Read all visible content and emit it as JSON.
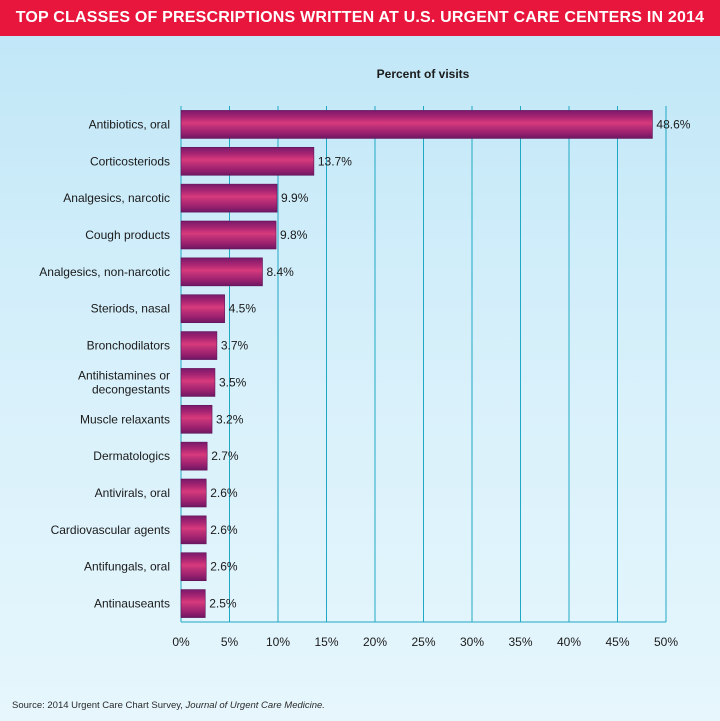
{
  "header": {
    "title": "TOP CLASSES OF PRESCRIPTIONS WRITTEN AT U.S. URGENT CARE CENTERS IN 2014"
  },
  "footer": {
    "source_prefix": "Source: 2014 Urgent Care Chart Survey, ",
    "source_publication": "Journal of Urgent Care Medicine."
  },
  "colors": {
    "title_bar": "#e8163c",
    "bar_outer": "#8a1f6e",
    "bar_highlight": "#d83a7c",
    "grid": "#1fa8c4"
  },
  "chart_data": {
    "type": "bar",
    "orientation": "horizontal",
    "title": "Percent of visits",
    "categories": [
      [
        "Antibiotics, oral"
      ],
      [
        "Corticosteriods"
      ],
      [
        "Analgesics, narcotic"
      ],
      [
        "Cough products"
      ],
      [
        "Analgesics, non-narcotic"
      ],
      [
        "Steriods, nasal"
      ],
      [
        "Bronchodilators"
      ],
      [
        "Antihistamines or",
        "decongestants"
      ],
      [
        "Muscle relaxants"
      ],
      [
        "Dermatologics"
      ],
      [
        "Antivirals, oral"
      ],
      [
        "Cardiovascular agents"
      ],
      [
        "Antifungals, oral"
      ],
      [
        "Antinauseants"
      ]
    ],
    "values": [
      48.6,
      13.7,
      9.9,
      9.8,
      8.4,
      4.5,
      3.7,
      3.5,
      3.2,
      2.7,
      2.6,
      2.6,
      2.6,
      2.5
    ],
    "value_labels": [
      "48.6%",
      "13.7%",
      "9.9%",
      "9.8%",
      "8.4%",
      "4.5%",
      "3.7%",
      "3.5%",
      "3.2%",
      "2.7%",
      "2.6%",
      "2.6%",
      "2.6%",
      "2.5%"
    ],
    "xlim": [
      0,
      50
    ],
    "xticks": [
      0,
      5,
      10,
      15,
      20,
      25,
      30,
      35,
      40,
      45,
      50
    ],
    "xtick_labels": [
      "0%",
      "5%",
      "10%",
      "15%",
      "20%",
      "25%",
      "30%",
      "35%",
      "40%",
      "45%",
      "50%"
    ],
    "grid": true
  }
}
